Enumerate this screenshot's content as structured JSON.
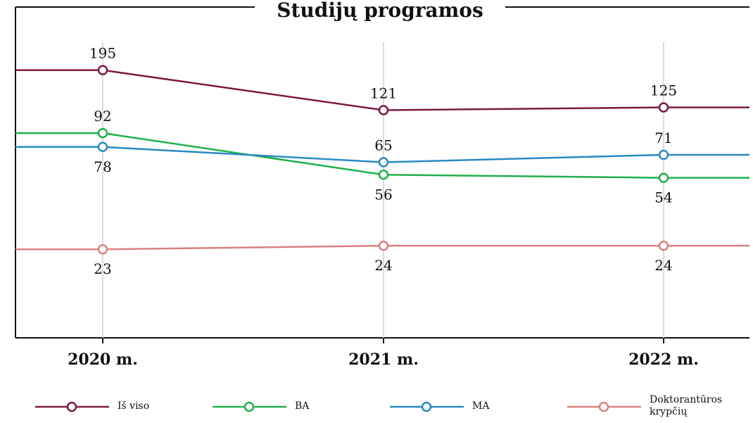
{
  "chart_data": {
    "type": "line",
    "title": "Studijų programos",
    "categories": [
      "2020 m.",
      "2021 m.",
      "2022 m."
    ],
    "series": [
      {
        "name": "Iš viso",
        "color": "#7b1a45",
        "values": [
          195,
          121,
          125
        ]
      },
      {
        "name": "BA",
        "color": "#1fb04a",
        "values": [
          92,
          56,
          54
        ]
      },
      {
        "name": "MA",
        "color": "#2a8ac4",
        "values": [
          78,
          65,
          71
        ]
      },
      {
        "name": "Doktorantūros krypčių",
        "color": "#d98080",
        "values": [
          23,
          24,
          24
        ]
      }
    ],
    "log": true,
    "ylim": [
      8,
      414
    ]
  }
}
